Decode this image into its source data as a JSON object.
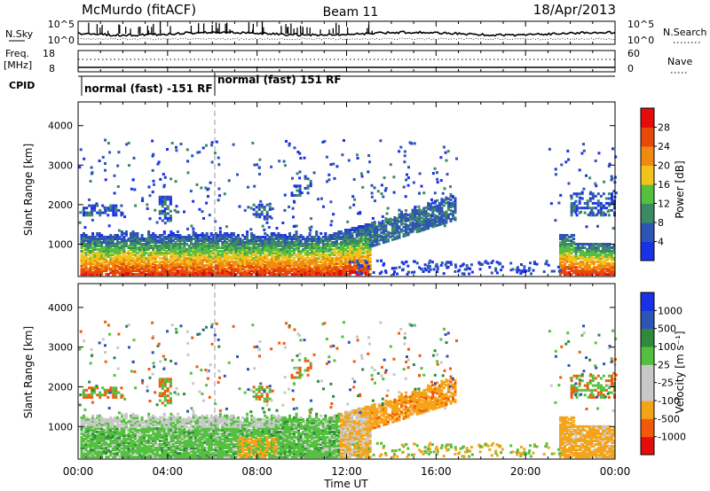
{
  "header": {
    "station": "McMurdo (fitACF)",
    "beam": "Beam 11",
    "date": "18/Apr/2013"
  },
  "noise_panel": {
    "left_label": "N.Sky",
    "right_label": "N.Search",
    "left_ticks": [
      "10^5",
      "10^0"
    ],
    "right_ticks": [
      "10^5",
      "10^0"
    ]
  },
  "freq_panel": {
    "left_label_line1": "Freq.",
    "left_label_line2": "[MHz]",
    "right_label": "Nave",
    "left_ticks": [
      "18",
      "8"
    ],
    "right_ticks": [
      "60",
      "0"
    ]
  },
  "cpid": {
    "label": "CPID",
    "segments": [
      {
        "text": "normal (fast) -151 RF",
        "start_hour": 0.0
      },
      {
        "text": "normal (fast) 151 RF",
        "start_hour": 6.0
      }
    ]
  },
  "colors": {
    "power": [
      "#1a32e6",
      "#2f55b4",
      "#3c8a62",
      "#55c040",
      "#f2c31a",
      "#f08a10",
      "#e64a0a",
      "#e60c0c"
    ],
    "velocity": [
      "#e60c0c",
      "#f25a0a",
      "#f5a418",
      "#c8c8c8",
      "#c8c8c8",
      "#55c040",
      "#2f8a3c",
      "#2f55b4",
      "#1a32e6"
    ]
  },
  "chart_data": [
    {
      "type": "heatmap",
      "name": "power-panel",
      "x_ticks": [
        "00:00",
        "04:00",
        "08:00",
        "12:00",
        "16:00",
        "20:00",
        "00:00"
      ],
      "x_tick_hours": [
        0,
        4,
        8,
        12,
        16,
        20,
        24
      ],
      "xlim": [
        0,
        24
      ],
      "ylabel": "Slant Range [km]",
      "ylim": [
        180,
        4600
      ],
      "y_ticks": [
        1000,
        2000,
        3000,
        4000
      ],
      "colorbar": {
        "label": "Power [dB]",
        "ticks": [
          "4",
          "8",
          "12",
          "16",
          "20",
          "24",
          "28"
        ],
        "range": [
          0,
          32
        ]
      },
      "data_regions": [
        {
          "t0": 0.0,
          "t1": 3.8,
          "r0": 180,
          "r1": 1200,
          "level": "strong"
        },
        {
          "t0": 3.8,
          "t1": 11.0,
          "r0": 180,
          "r1": 1100,
          "level": "strong"
        },
        {
          "t0": 11.0,
          "t1": 13.0,
          "r0": 180,
          "r1": 1200,
          "level": "strong"
        },
        {
          "t0": 13.0,
          "t1": 16.8,
          "r0": 800,
          "r1": 1900,
          "level": "weak"
        },
        {
          "t0": 21.5,
          "t1": 24.0,
          "r0": 180,
          "r1": 1000,
          "level": "strong"
        }
      ]
    },
    {
      "type": "heatmap",
      "name": "velocity-panel",
      "xlabel": "Time UT",
      "x_ticks": [
        "00:00",
        "04:00",
        "08:00",
        "12:00",
        "16:00",
        "20:00",
        "00:00"
      ],
      "x_tick_hours": [
        0,
        4,
        8,
        12,
        16,
        20,
        24
      ],
      "xlim": [
        0,
        24
      ],
      "ylabel": "Slant Range [km]",
      "ylim": [
        180,
        4600
      ],
      "y_ticks": [
        1000,
        2000,
        3000,
        4000
      ],
      "colorbar": {
        "label": "Velocity [m s⁻¹]",
        "ticks": [
          "1000",
          "500",
          "100",
          "25",
          "-25",
          "-100",
          "-500",
          "-1000"
        ]
      }
    }
  ]
}
